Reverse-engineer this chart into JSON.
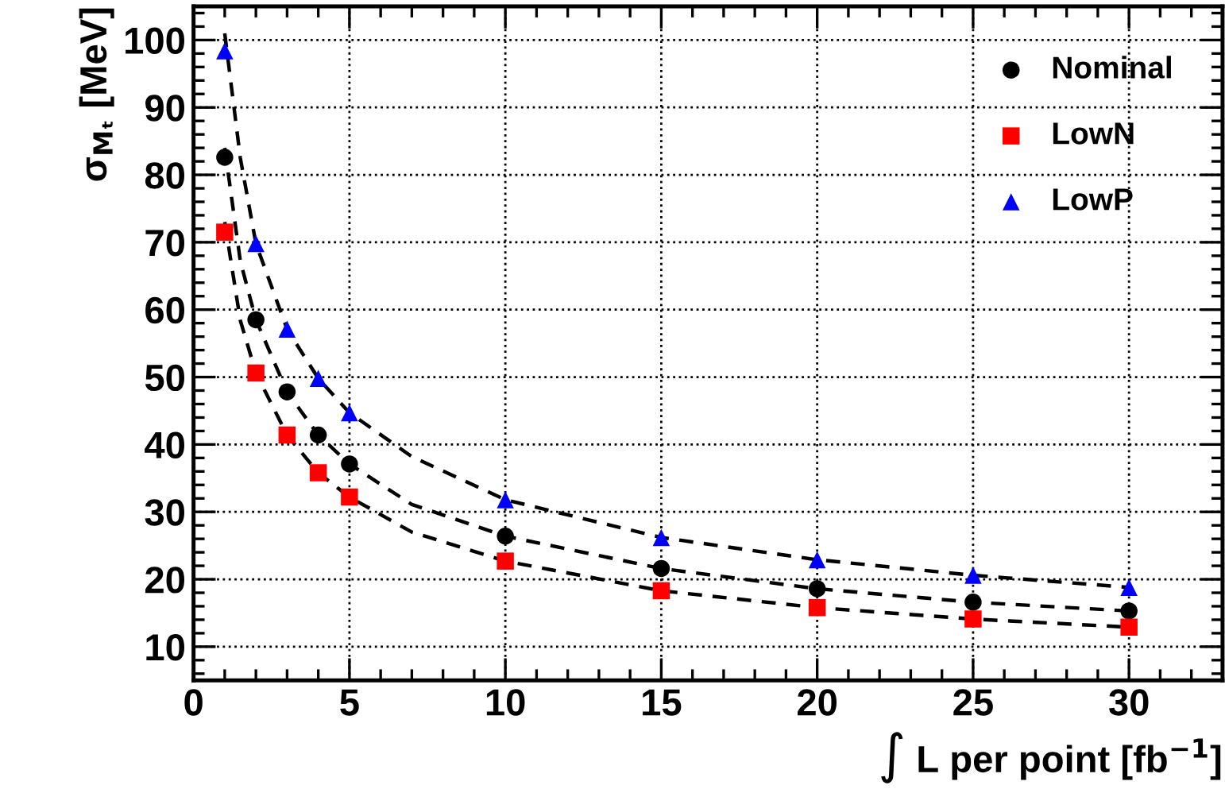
{
  "chart_data": {
    "type": "scatter",
    "xlabel": "∫ L per point [fb$^{−1}$]",
    "ylabel": "σ$_{Mₜ}$ [MeV]",
    "xlim": [
      0,
      33
    ],
    "ylim": [
      5,
      105
    ],
    "xticks": [
      0,
      5,
      10,
      15,
      20,
      25,
      30
    ],
    "yticks": [
      10,
      20,
      30,
      40,
      50,
      60,
      70,
      80,
      90,
      100
    ],
    "grid": true,
    "legend": "top right",
    "series": [
      {
        "name": "Nominal",
        "color": "#000000",
        "marker": "circle",
        "x": [
          1,
          2,
          3,
          4,
          5,
          10,
          15,
          20,
          25,
          30
        ],
        "values": [
          82.6,
          58.5,
          47.8,
          41.4,
          37.1,
          26.4,
          21.6,
          18.6,
          16.6,
          15.3
        ]
      },
      {
        "name": "LowN",
        "color": "#ff0000",
        "marker": "square",
        "x": [
          1,
          2,
          3,
          4,
          5,
          10,
          15,
          20,
          25,
          30
        ],
        "values": [
          71.5,
          50.6,
          41.4,
          35.8,
          32.2,
          22.7,
          18.3,
          15.8,
          14.1,
          12.9
        ]
      },
      {
        "name": "LowP",
        "color": "#0000ff",
        "marker": "triangle",
        "x": [
          1,
          2,
          3,
          4,
          5,
          10,
          15,
          20,
          25,
          30
        ],
        "values": [
          98.4,
          69.8,
          57.1,
          49.8,
          44.7,
          31.8,
          26.2,
          22.9,
          20.6,
          18.8
        ]
      },
      {
        "type": "line",
        "color": "#000000",
        "line_style": "dashed",
        "x": [
          1,
          1.5,
          2,
          3,
          4,
          5,
          7,
          10,
          15,
          20,
          25,
          30
        ],
        "values": [
          84,
          67.2,
          58.5,
          47.8,
          41.4,
          37.1,
          31.1,
          26.4,
          21.6,
          18.6,
          16.6,
          15.3
        ]
      },
      {
        "type": "line",
        "color": "#000000",
        "line_style": "dashed",
        "x": [
          1,
          1.5,
          2,
          3,
          4,
          5,
          7,
          10,
          15,
          20,
          25,
          30
        ],
        "values": [
          73,
          58.4,
          50.6,
          41.4,
          35.8,
          32.2,
          27.0,
          22.7,
          18.3,
          15.8,
          14.1,
          12.9
        ]
      },
      {
        "type": "line",
        "color": "#000000",
        "line_style": "dashed",
        "x": [
          1,
          1.5,
          2,
          3,
          4,
          5,
          7,
          10,
          15,
          20,
          25,
          30
        ],
        "values": [
          101,
          82.5,
          69.8,
          57.1,
          49.8,
          44.7,
          38.2,
          31.8,
          26.2,
          22.9,
          20.6,
          18.8
        ]
      }
    ]
  }
}
